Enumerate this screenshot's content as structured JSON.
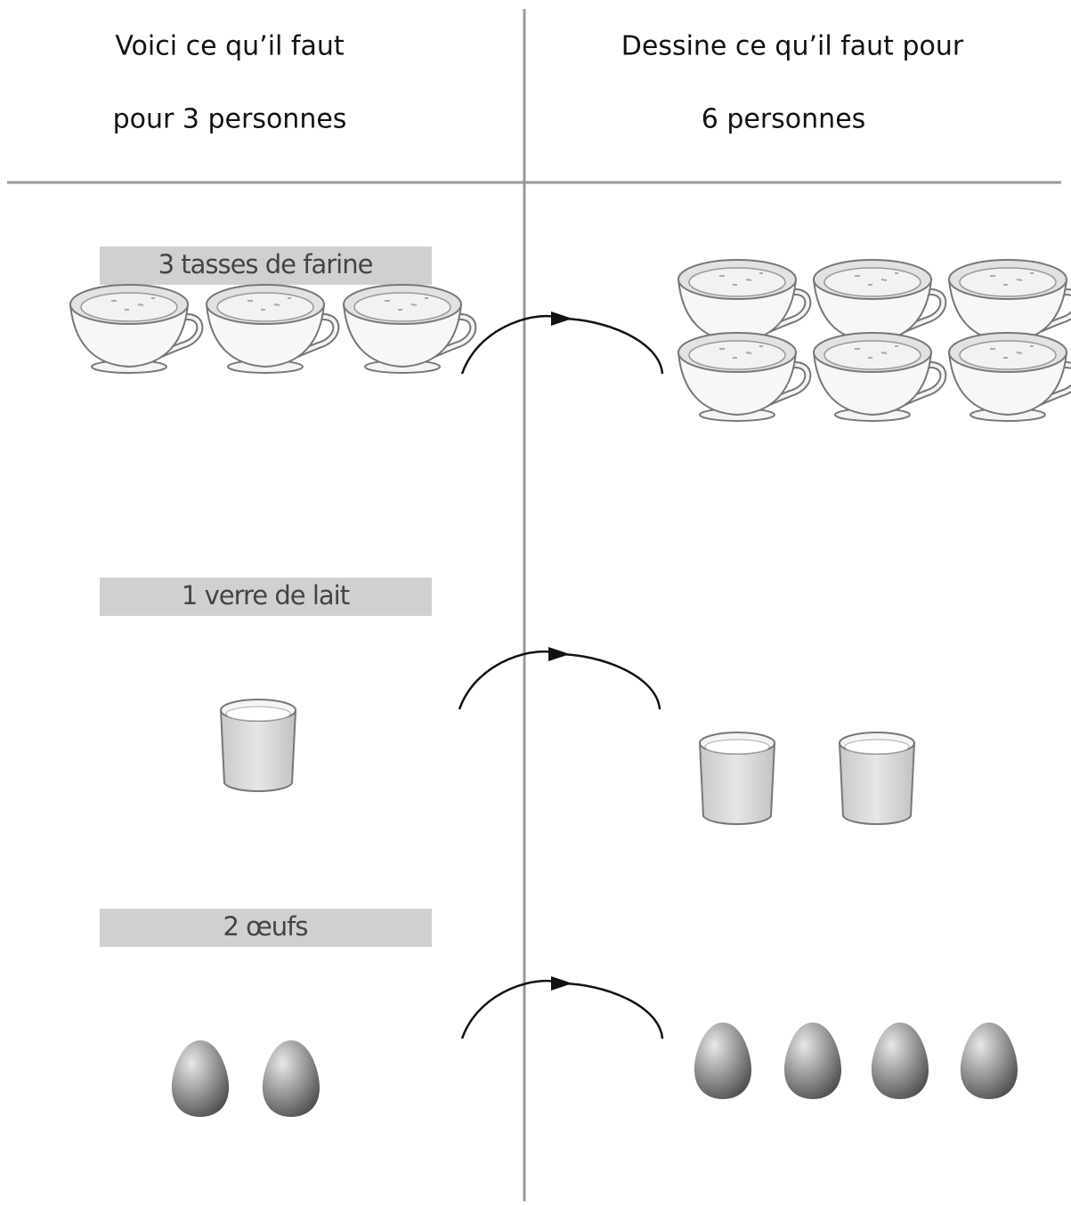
{
  "header": {
    "left": [
      "Voici ce qu’il faut",
      "pour 3 personnes"
    ],
    "right": [
      "Dessine ce qu’il faut pour",
      "6 personnes"
    ]
  },
  "rows": [
    {
      "label": "3 tasses de farine"
    },
    {
      "label": "1 verre de lait"
    },
    {
      "label": "2 œufs"
    }
  ]
}
